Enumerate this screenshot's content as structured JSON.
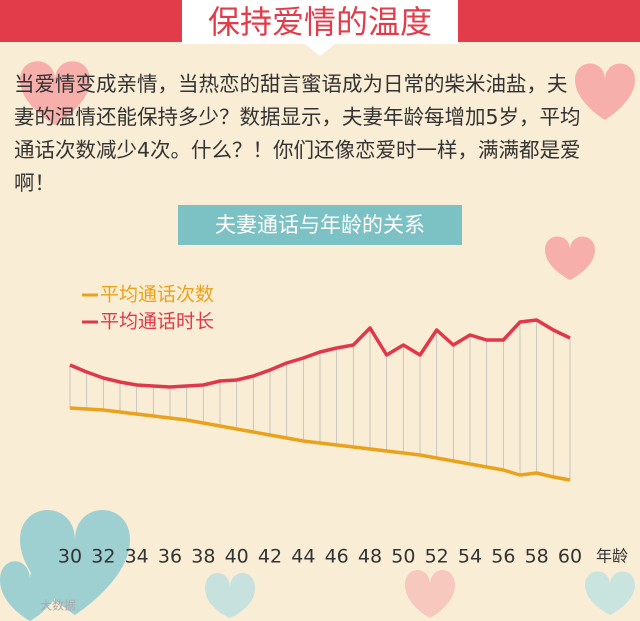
{
  "chart_data": {
    "type": "line",
    "title": "保持爱情的温度",
    "paragraph": [
      "当爱情变成亲情，当热恋的甜言蜜语成为日常的柴米油盐，夫",
      "妻的温情还能保持多少？数据显示，夫妻年龄每增加5岁，平均",
      "通话次数减少4次。什么？！你们还像恋爱时一样，满满都是爱",
      "啊！"
    ],
    "subtitle": "夫妻通话与年龄的关系",
    "x_label": "年龄",
    "watermark": "大数据",
    "x": [
      30,
      31,
      32,
      33,
      34,
      35,
      36,
      37,
      38,
      39,
      40,
      41,
      42,
      43,
      44,
      45,
      46,
      47,
      48,
      49,
      50,
      51,
      52,
      53,
      54,
      55,
      56,
      57,
      58,
      59,
      60
    ],
    "xlim": [
      30,
      60
    ],
    "xticks": [
      30,
      32,
      34,
      36,
      38,
      40,
      42,
      44,
      46,
      48,
      50,
      52,
      54,
      56,
      58,
      60
    ],
    "ylim": [
      0,
      100
    ],
    "series": [
      {
        "name": "平均通话次数",
        "color": "#e9a21c",
        "values": [
          46,
          45.5,
          45,
          44,
          43,
          42,
          41,
          40,
          38.5,
          37,
          35.5,
          34,
          32.5,
          31,
          29.5,
          28.5,
          27.5,
          26.5,
          25.5,
          24.5,
          23.5,
          22.5,
          21,
          19.5,
          18,
          16.5,
          15,
          12.5,
          13.5,
          11.5,
          10
        ]
      },
      {
        "name": "平均通话时长",
        "color": "#e0384a",
        "values": [
          67.5,
          64,
          61,
          59,
          57.5,
          57,
          56.5,
          57,
          57.5,
          59.5,
          60,
          62,
          65,
          68.5,
          71,
          74,
          76,
          77.5,
          86,
          72.5,
          77.5,
          72.5,
          85,
          77.5,
          82.5,
          80,
          80,
          89,
          90,
          85,
          81
        ]
      }
    ]
  }
}
